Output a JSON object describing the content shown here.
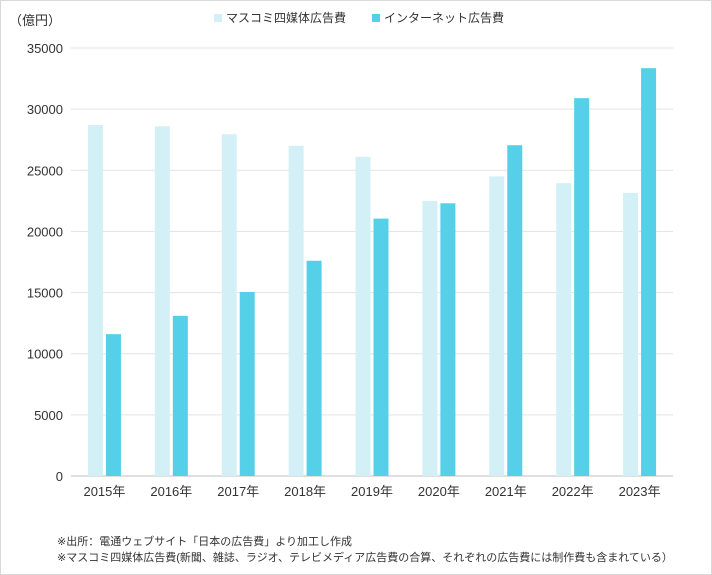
{
  "chart_data": {
    "type": "bar",
    "unit_label": "（億円）",
    "categories": [
      "2015年",
      "2016年",
      "2017年",
      "2018年",
      "2019年",
      "2020年",
      "2021年",
      "2022年",
      "2023年"
    ],
    "series": [
      {
        "name": "マスコミ四媒体広告費",
        "color": "#d4f0f7",
        "values": [
          28700,
          28600,
          27950,
          27000,
          26100,
          22500,
          24500,
          23950,
          23150
        ]
      },
      {
        "name": "インターネット広告費",
        "color": "#55d0e8",
        "values": [
          11600,
          13100,
          15050,
          17600,
          21050,
          22300,
          27050,
          30900,
          33350
        ]
      }
    ],
    "y_ticks": [
      "0",
      "5000",
      "10000",
      "15000",
      "20000",
      "25000",
      "30000",
      "35000"
    ],
    "ylim": [
      0,
      35000
    ],
    "grid": true,
    "legend_position": "top-center"
  },
  "notes": [
    "※出所：電通ウェブサイト「日本の広告費」より加工し作成",
    "※マスコミ四媒体広告費(新聞、雑誌、ラジオ、テレビメディア広告費の合算、それぞれの広告費には制作費も含まれている）"
  ]
}
